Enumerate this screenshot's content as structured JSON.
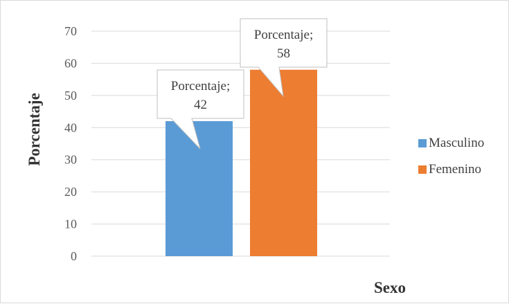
{
  "chart_data": {
    "type": "bar",
    "title": "",
    "xlabel": "Sexo",
    "ylabel": "Porcentaje",
    "ylim": [
      0,
      70
    ],
    "yticks": [
      0,
      10,
      20,
      30,
      40,
      50,
      60,
      70
    ],
    "grid": true,
    "legend_position": "right",
    "series": [
      {
        "name": "Masculino",
        "value": 42,
        "color": "#5b9bd5",
        "label_line1": "Porcentaje;",
        "label_line2": "42"
      },
      {
        "name": "Femenino",
        "value": 58,
        "color": "#ed7d31",
        "label_line1": "Porcentaje;",
        "label_line2": "58"
      }
    ]
  }
}
